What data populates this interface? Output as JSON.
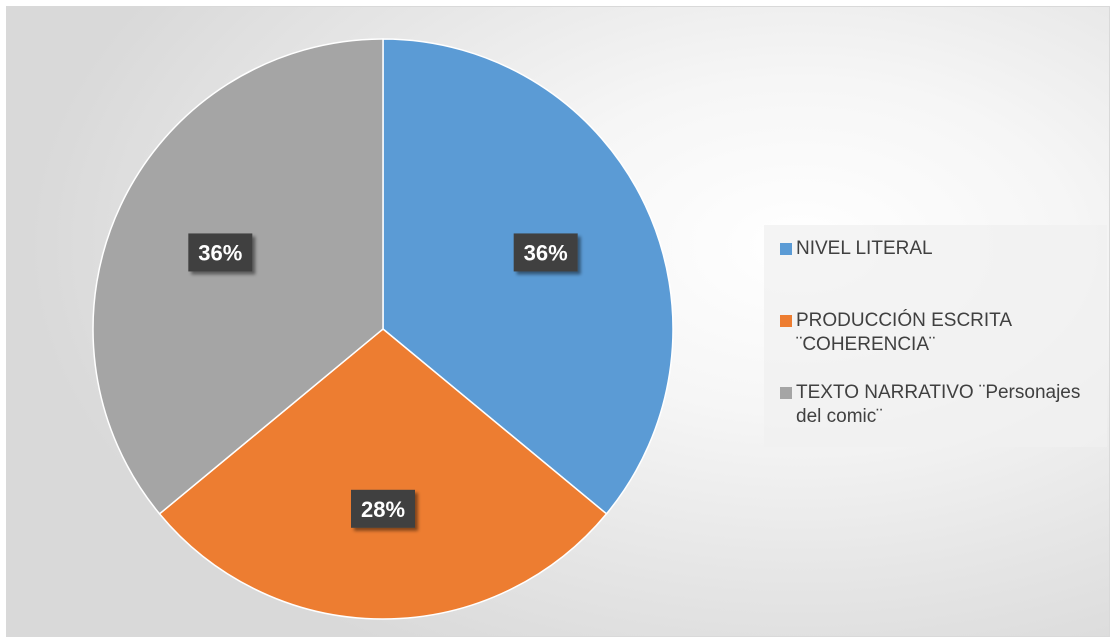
{
  "chart_data": {
    "type": "pie",
    "title": "",
    "slices": [
      {
        "label": "NIVEL LITERAL",
        "value": 36,
        "value_label": "36%",
        "color": "#5b9bd5"
      },
      {
        "label": "PRODUCCIÓN ESCRITA\n¨COHERENCIA¨",
        "value": 28,
        "value_label": "28%",
        "color": "#ed7d31"
      },
      {
        "label": "TEXTO NARRATIVO ¨Personajes\ndel comic¨",
        "value": 36,
        "value_label": "36%",
        "color": "#a5a5a5"
      }
    ],
    "legend_position": "right",
    "start_angle_deg": 0,
    "direction": "clockwise"
  }
}
